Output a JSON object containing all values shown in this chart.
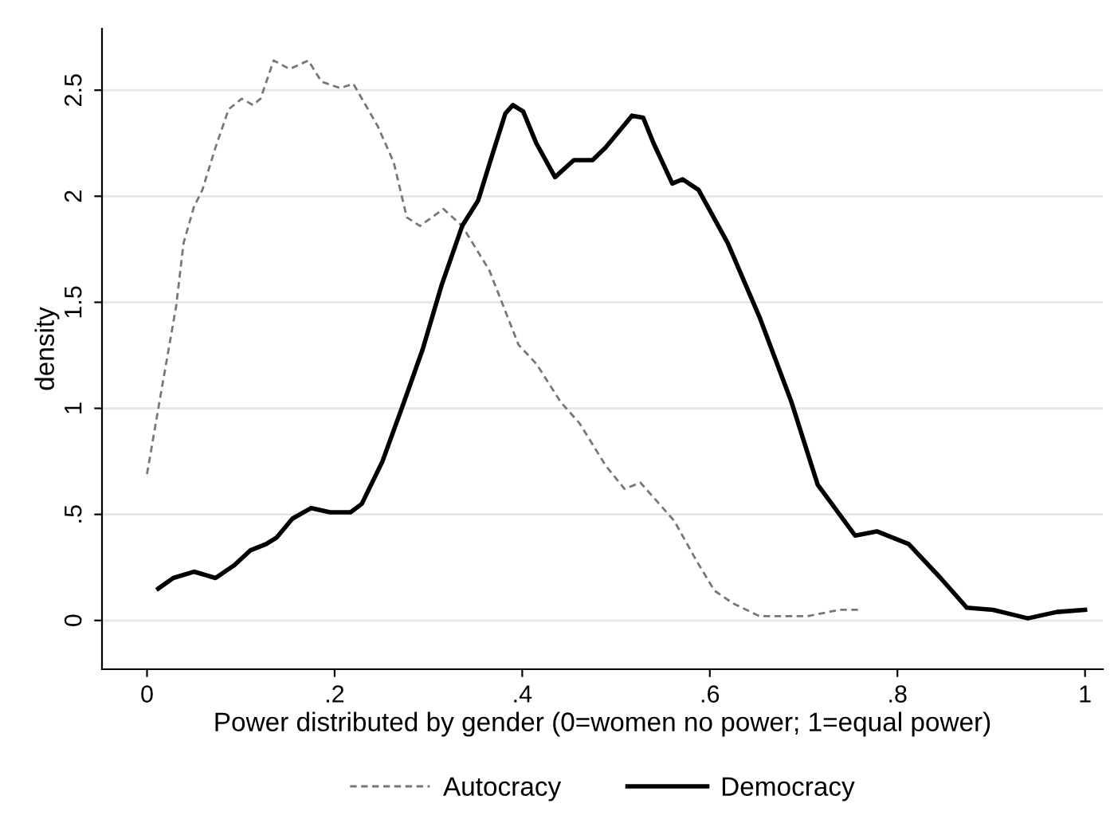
{
  "chart_data": {
    "type": "line",
    "xlabel": "Power distributed by gender (0=women no power; 1=equal power)",
    "ylabel": "density",
    "xlim": [
      -0.048,
      1.019
    ],
    "ylim": [
      -0.23,
      2.79
    ],
    "xticks": [
      {
        "value": 0,
        "label": "0"
      },
      {
        "value": 0.2,
        "label": ".2"
      },
      {
        "value": 0.4,
        "label": ".4"
      },
      {
        "value": 0.6,
        "label": ".6"
      },
      {
        "value": 0.8,
        "label": ".8"
      },
      {
        "value": 1,
        "label": "1"
      }
    ],
    "yticks": [
      {
        "value": 0,
        "label": "0"
      },
      {
        "value": 0.5,
        "label": ".5"
      },
      {
        "value": 1,
        "label": "1"
      },
      {
        "value": 1.5,
        "label": "1.5"
      },
      {
        "value": 2,
        "label": "2"
      },
      {
        "value": 2.5,
        "label": "2.5"
      }
    ],
    "grid": "y",
    "legend": "bottom",
    "series": [
      {
        "name": "Autocracy",
        "color": "#777777",
        "line_style": "dashed",
        "x": [
          0,
          0.014,
          0.031,
          0.039,
          0.05,
          0.059,
          0.073,
          0.087,
          0.101,
          0.113,
          0.121,
          0.135,
          0.152,
          0.172,
          0.186,
          0.206,
          0.22,
          0.246,
          0.263,
          0.277,
          0.291,
          0.316,
          0.336,
          0.365,
          0.396,
          0.415,
          0.441,
          0.461,
          0.489,
          0.509,
          0.526,
          0.562,
          0.586,
          0.605,
          0.625,
          0.653,
          0.704,
          0.738,
          0.76
        ],
        "values": [
          0.69,
          1.05,
          1.48,
          1.78,
          1.95,
          2.03,
          2.23,
          2.41,
          2.46,
          2.43,
          2.46,
          2.64,
          2.6,
          2.64,
          2.54,
          2.51,
          2.53,
          2.33,
          2.16,
          1.9,
          1.86,
          1.94,
          1.86,
          1.65,
          1.3,
          1.21,
          1.03,
          0.93,
          0.73,
          0.62,
          0.65,
          0.47,
          0.28,
          0.14,
          0.08,
          0.02,
          0.02,
          0.05,
          0.05
        ]
      },
      {
        "name": "Democracy",
        "color": "#000000",
        "line_style": "solid",
        "x": [
          0.012,
          0.028,
          0.05,
          0.073,
          0.093,
          0.11,
          0.127,
          0.138,
          0.155,
          0.175,
          0.195,
          0.217,
          0.229,
          0.251,
          0.274,
          0.294,
          0.314,
          0.336,
          0.353,
          0.367,
          0.382,
          0.39,
          0.401,
          0.415,
          0.435,
          0.455,
          0.475,
          0.489,
          0.517,
          0.529,
          0.54,
          0.56,
          0.571,
          0.588,
          0.619,
          0.653,
          0.687,
          0.715,
          0.755,
          0.778,
          0.812,
          0.846,
          0.874,
          0.902,
          0.939,
          0.97,
          1.0
        ],
        "values": [
          0.15,
          0.2,
          0.23,
          0.2,
          0.26,
          0.33,
          0.36,
          0.39,
          0.48,
          0.53,
          0.51,
          0.51,
          0.55,
          0.75,
          1.03,
          1.28,
          1.58,
          1.86,
          1.98,
          2.18,
          2.39,
          2.43,
          2.4,
          2.25,
          2.09,
          2.17,
          2.17,
          2.23,
          2.38,
          2.37,
          2.25,
          2.06,
          2.08,
          2.03,
          1.78,
          1.43,
          1.03,
          0.64,
          0.4,
          0.42,
          0.36,
          0.2,
          0.06,
          0.05,
          0.01,
          0.04,
          0.05
        ]
      }
    ]
  }
}
